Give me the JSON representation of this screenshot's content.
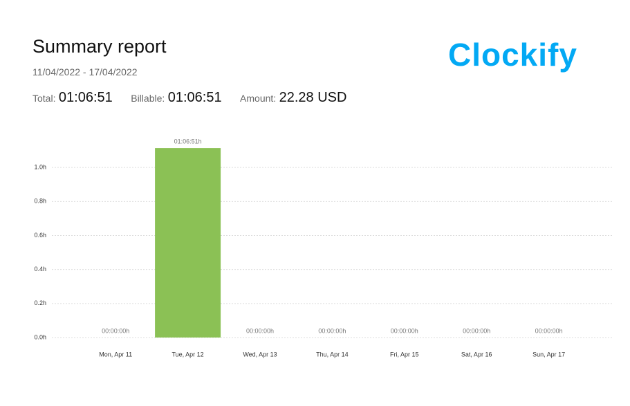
{
  "header": {
    "title": "Summary report",
    "date_range": "11/04/2022 - 17/04/2022",
    "total_label": "Total:",
    "total": "01:06:51",
    "billable_label": "Billable:",
    "billable": "01:06:51",
    "amount_label": "Amount:",
    "amount": "22.28 USD",
    "logo": "Clockify"
  },
  "chart_data": {
    "type": "bar",
    "categories": [
      "Mon, Apr 11",
      "Tue, Apr 12",
      "Wed, Apr 13",
      "Thu, Apr 14",
      "Fri, Apr 15",
      "Sat, Apr 16",
      "Sun, Apr 17"
    ],
    "values": [
      0,
      1.1142,
      0,
      0,
      0,
      0,
      0
    ],
    "value_labels": [
      "00:00:00h",
      "01:06:51h",
      "00:00:00h",
      "00:00:00h",
      "00:00:00h",
      "00:00:00h",
      "00:00:00h"
    ],
    "color": "#8bc155",
    "ylim": [
      0,
      1.2
    ],
    "yticks": [
      {
        "value": 0,
        "label": "0.0h"
      },
      {
        "value": 0.2,
        "label": "0.2h"
      },
      {
        "value": 0.4,
        "label": "0.4h"
      },
      {
        "value": 0.6,
        "label": "0.6h"
      },
      {
        "value": 0.8,
        "label": "0.8h"
      },
      {
        "value": 1.0,
        "label": "1.0h"
      }
    ],
    "grid": true
  }
}
